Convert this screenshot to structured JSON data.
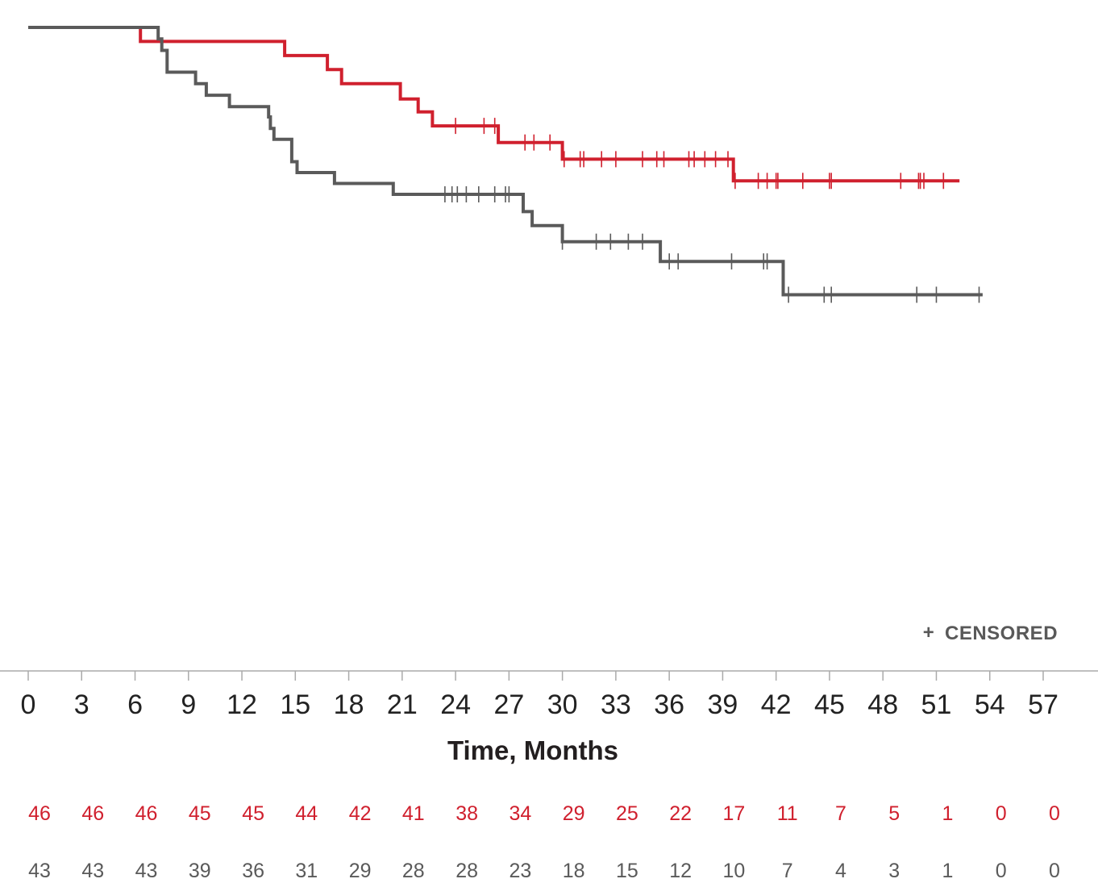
{
  "chart_data": {
    "type": "line",
    "step": true,
    "xlabel": "Time, Months",
    "ylabel": "",
    "xlim": [
      0,
      57
    ],
    "x_ticks": [
      "0",
      "3",
      "6",
      "9",
      "12",
      "15",
      "18",
      "21",
      "24",
      "27",
      "30",
      "33",
      "36",
      "39",
      "42",
      "45",
      "48",
      "51",
      "54",
      "57"
    ],
    "grid": false,
    "colors": {
      "red": "#d0202e",
      "gray": "#5a5a5a",
      "axis": "#aaaaaa"
    },
    "legend": {
      "symbol": "+",
      "label": "CENSORED",
      "position": "bottom-right"
    },
    "series": [
      {
        "color": "#d0202e",
        "steps": [
          [
            0,
            1.0
          ],
          [
            6.3,
            0.978
          ],
          [
            14.4,
            0.956
          ],
          [
            16.8,
            0.934
          ],
          [
            17.6,
            0.912
          ],
          [
            20.9,
            0.888
          ],
          [
            21.9,
            0.868
          ],
          [
            22.7,
            0.846
          ],
          [
            26.4,
            0.82
          ],
          [
            30.0,
            0.794
          ],
          [
            39.6,
            0.76
          ],
          [
            52.3,
            0.76
          ]
        ],
        "censored": [
          24.0,
          25.6,
          26.2,
          27.9,
          28.4,
          29.3,
          30.1,
          31.0,
          31.2,
          32.2,
          33.0,
          34.5,
          35.3,
          35.7,
          37.1,
          37.4,
          38.0,
          38.6,
          39.3,
          39.7,
          41.0,
          41.5,
          42.0,
          42.1,
          43.5,
          45.0,
          45.1,
          49.0,
          50.0,
          50.1,
          50.3,
          51.4
        ]
      },
      {
        "color": "#5a5a5a",
        "steps": [
          [
            0,
            1.0
          ],
          [
            7.3,
            0.982
          ],
          [
            7.5,
            0.964
          ],
          [
            7.8,
            0.93
          ],
          [
            9.4,
            0.912
          ],
          [
            10.0,
            0.894
          ],
          [
            11.3,
            0.876
          ],
          [
            13.5,
            0.86
          ],
          [
            13.6,
            0.842
          ],
          [
            13.8,
            0.825
          ],
          [
            14.8,
            0.79
          ],
          [
            15.1,
            0.773
          ],
          [
            17.2,
            0.756
          ],
          [
            20.5,
            0.739
          ],
          [
            27.8,
            0.712
          ],
          [
            28.3,
            0.69
          ],
          [
            30.0,
            0.665
          ],
          [
            35.5,
            0.634
          ],
          [
            42.4,
            0.582
          ],
          [
            53.6,
            0.582
          ]
        ],
        "censored": [
          23.4,
          23.8,
          24.1,
          24.6,
          25.3,
          26.2,
          26.8,
          27.0,
          30.0,
          31.9,
          32.7,
          33.7,
          34.5,
          36.0,
          36.5,
          39.5,
          41.3,
          41.5,
          42.7,
          44.7,
          45.1,
          49.9,
          51.0,
          53.4
        ]
      }
    ],
    "risk_table": {
      "rows": [
        {
          "color": "#d0202e",
          "values": [
            "46",
            "46",
            "46",
            "45",
            "45",
            "44",
            "42",
            "41",
            "38",
            "34",
            "29",
            "25",
            "22",
            "17",
            "11",
            "7",
            "5",
            "1",
            "0",
            "0"
          ]
        },
        {
          "color": "#5a5a5a",
          "values": [
            "43",
            "43",
            "43",
            "39",
            "36",
            "31",
            "29",
            "28",
            "28",
            "23",
            "18",
            "15",
            "12",
            "10",
            "7",
            "4",
            "3",
            "1",
            "0",
            "0"
          ]
        }
      ]
    }
  }
}
